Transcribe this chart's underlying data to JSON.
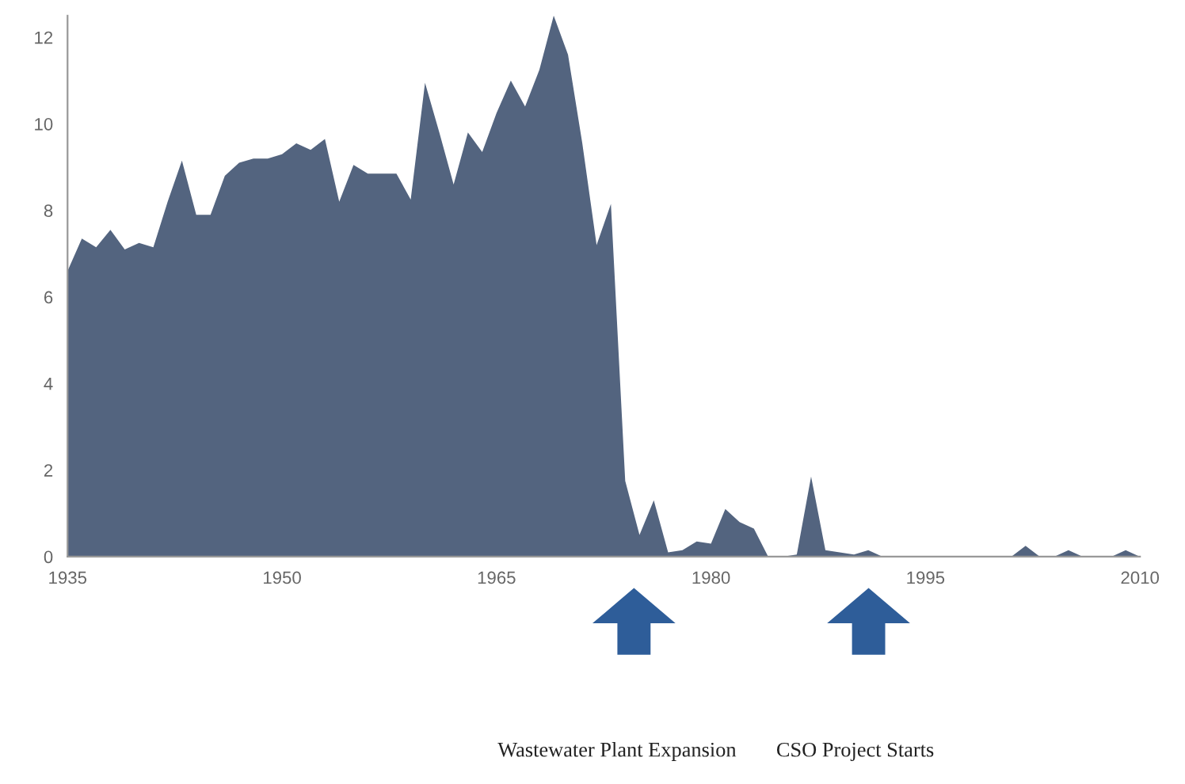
{
  "chart_data": {
    "type": "area",
    "color": "#53647f",
    "x": [
      1935,
      1936,
      1937,
      1938,
      1939,
      1940,
      1941,
      1942,
      1943,
      1944,
      1945,
      1946,
      1947,
      1948,
      1949,
      1950,
      1951,
      1952,
      1953,
      1954,
      1955,
      1956,
      1957,
      1958,
      1959,
      1960,
      1961,
      1962,
      1963,
      1964,
      1965,
      1966,
      1967,
      1968,
      1969,
      1970,
      1971,
      1972,
      1973,
      1974,
      1975,
      1976,
      1977,
      1978,
      1979,
      1980,
      1981,
      1982,
      1983,
      1984,
      1985,
      1986,
      1987,
      1988,
      1989,
      1990,
      1991,
      1992,
      1993,
      1994,
      1995,
      1996,
      1997,
      1998,
      1999,
      2000,
      2001,
      2002,
      2003,
      2004,
      2005,
      2006,
      2007,
      2008,
      2009,
      2010
    ],
    "values": [
      6.6,
      7.35,
      7.15,
      7.55,
      7.1,
      7.25,
      7.15,
      8.2,
      9.15,
      7.9,
      7.9,
      8.8,
      9.1,
      9.2,
      9.2,
      9.3,
      9.55,
      9.4,
      9.65,
      8.2,
      9.05,
      8.85,
      8.85,
      8.85,
      8.25,
      10.95,
      9.8,
      8.6,
      9.8,
      9.35,
      10.25,
      11.0,
      10.4,
      11.25,
      12.5,
      11.6,
      9.55,
      7.2,
      8.15,
      1.75,
      0.5,
      1.3,
      0.1,
      0.15,
      0.35,
      0.3,
      1.1,
      0.8,
      0.65,
      0,
      0,
      0.05,
      1.85,
      0.15,
      0.1,
      0.05,
      0.15,
      0,
      0,
      0,
      0,
      0,
      0,
      0,
      0,
      0,
      0,
      0.25,
      0,
      0,
      0.15,
      0,
      0,
      0,
      0.15,
      0
    ],
    "xlim": [
      1935,
      2010
    ],
    "xticks": [
      1935,
      1950,
      1965,
      1980,
      1995,
      2010
    ],
    "ylim": [
      0,
      12.5
    ],
    "yticks": [
      0,
      2,
      4,
      6,
      8,
      10,
      12
    ],
    "grid": false,
    "legend": false,
    "annotations": [
      "Wastewater Plant Expansion",
      "CSO Project Starts"
    ]
  }
}
